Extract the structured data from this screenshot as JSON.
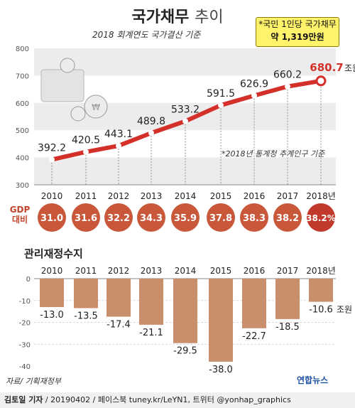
{
  "title_main": "국가채무",
  "title_sub": "추이",
  "subtitle": "2018 회계연도 국가결산 기준",
  "callout": {
    "line1": "*국민 1인당 국가채무",
    "line2": "약 1,319만원"
  },
  "note": "*2018년 통계청 추계인구 기준",
  "gdp_label": [
    "GDP",
    "대비"
  ],
  "section2_title": "관리재정수지",
  "source": "자료/ 기획재정부",
  "footer": {
    "author": "김토일 기자",
    "rest": " / 20190402 / 페이스북 tuney.kr/LeYN1, 트위터 @yonhap_graphics"
  },
  "logo": "연합뉴스",
  "colors": {
    "line": "#d3302a",
    "point_fill": "#ffffff",
    "circle": "#c9573a",
    "circle_last": "#c0392b",
    "bar": "#c98f6c",
    "accent_text": "#d3302a"
  },
  "chart_data": [
    {
      "type": "line",
      "title": "국가채무 추이",
      "x": [
        "2010",
        "2011",
        "2012",
        "2013",
        "2014",
        "2015",
        "2016",
        "2017",
        "2018년"
      ],
      "values": [
        392.2,
        420.5,
        443.1,
        489.8,
        533.2,
        591.5,
        626.9,
        660.2,
        680.7
      ],
      "value_labels": [
        "392.2",
        "420.5",
        "443.1",
        "489.8",
        "533.2",
        "591.5",
        "626.9",
        "660.2",
        "680.7"
      ],
      "last_unit": "조원",
      "ylim": [
        300,
        800
      ],
      "yticks": [
        "300",
        "400",
        "500",
        "600",
        "700",
        "800"
      ],
      "grid": "bands"
    },
    {
      "type": "table",
      "title": "GDP 대비",
      "x": [
        "2010",
        "2011",
        "2012",
        "2013",
        "2014",
        "2015",
        "2016",
        "2017",
        "2018"
      ],
      "values": [
        31.0,
        31.6,
        32.2,
        34.3,
        35.9,
        37.8,
        38.3,
        38.2,
        38.2
      ],
      "value_labels": [
        "31.0",
        "31.6",
        "32.2",
        "34.3",
        "35.9",
        "37.8",
        "38.3",
        "38.2",
        "38.2%"
      ]
    },
    {
      "type": "bar",
      "title": "관리재정수지",
      "x": [
        "2010",
        "2011",
        "2012",
        "2013",
        "2014",
        "2015",
        "2016",
        "2017",
        "2018년"
      ],
      "values": [
        -13.0,
        -13.5,
        -17.4,
        -21.1,
        -29.5,
        -38.0,
        -22.7,
        -18.5,
        -10.6
      ],
      "value_labels": [
        "-13.0",
        "-13.5",
        "-17.4",
        "-21.1",
        "-29.5",
        "-38.0",
        "-22.7",
        "-18.5",
        "-10.6"
      ],
      "last_unit": "조원",
      "ylim": [
        -40,
        0
      ],
      "yticks": [
        "0",
        "-10",
        "-20",
        "-30",
        "-40"
      ]
    }
  ]
}
